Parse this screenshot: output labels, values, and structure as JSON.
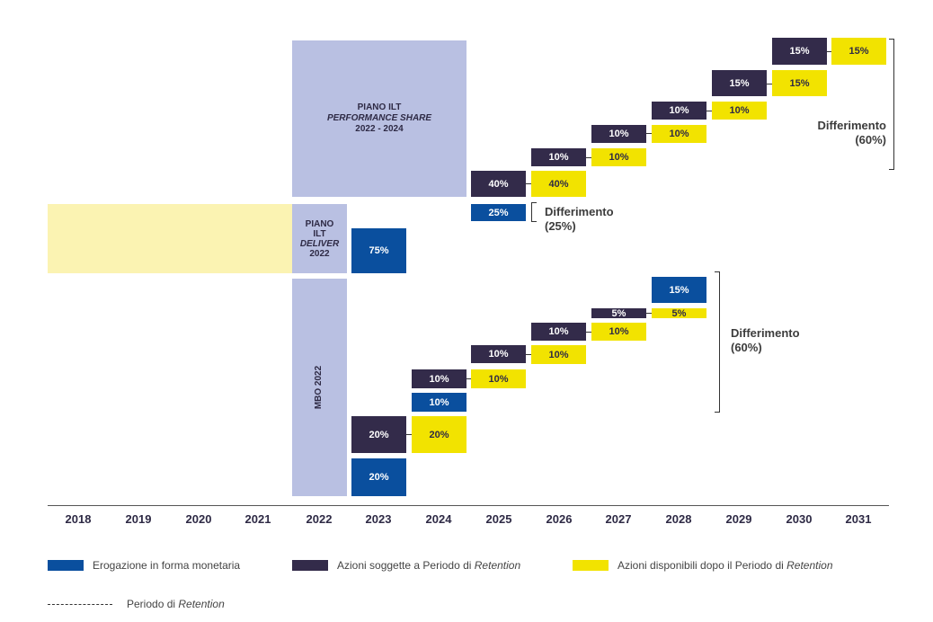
{
  "colors": {
    "blue": "#0a4f9e",
    "dark": "#332b4a",
    "yellow": "#f2e300",
    "plan_purple": "#b9c0e2",
    "plan_yellow": "#fbf3b2"
  },
  "plans": {
    "performance": {
      "line1": "PIANO ILT",
      "line2": "PERFORMANCE SHARE",
      "line3": "2022 - 2024"
    },
    "deliver": {
      "line1": "PIANO",
      "line2": "ILT",
      "line3": "DELIVER",
      "line4": "2022"
    },
    "mbo": {
      "label": "MBO 2022"
    }
  },
  "chart_data": {
    "type": "table",
    "title": "",
    "years": [
      "2018",
      "2019",
      "2020",
      "2021",
      "2022",
      "2023",
      "2024",
      "2025",
      "2026",
      "2027",
      "2028",
      "2029",
      "2030",
      "2031"
    ],
    "cells": [
      {
        "year": "2025",
        "kind": "Azioni soggette a Periodo di Retention",
        "label": "40%"
      },
      {
        "year": "2026",
        "kind": "Azioni disponibili dopo il Periodo di Retention",
        "label": "40%"
      },
      {
        "year": "2026",
        "kind": "Azioni soggette a Periodo di Retention",
        "label": "10%"
      },
      {
        "year": "2027",
        "kind": "Azioni disponibili dopo il Periodo di Retention",
        "label": "10%"
      },
      {
        "year": "2027",
        "kind": "Azioni soggette a Periodo di Retention",
        "label": "10%"
      },
      {
        "year": "2028",
        "kind": "Azioni disponibili dopo il Periodo di Retention",
        "label": "10%"
      },
      {
        "year": "2028",
        "kind": "Azioni soggette a Periodo di Retention",
        "label": "10%"
      },
      {
        "year": "2029",
        "kind": "Azioni disponibili dopo il Periodo di Retention",
        "label": "10%"
      },
      {
        "year": "2029",
        "kind": "Azioni soggette a Periodo di Retention",
        "label": "15%"
      },
      {
        "year": "2030",
        "kind": "Azioni disponibili dopo il Periodo di Retention",
        "label": "15%"
      },
      {
        "year": "2030",
        "kind": "Azioni soggette a Periodo di Retention",
        "label": "15%"
      },
      {
        "year": "2031",
        "kind": "Azioni disponibili dopo il Periodo di Retention",
        "label": "15%"
      },
      {
        "year": "2025",
        "kind": "Erogazione in forma monetaria",
        "label": "25%"
      },
      {
        "year": "2023",
        "kind": "Erogazione in forma monetaria",
        "label": "75%"
      },
      {
        "year": "2028",
        "kind": "Erogazione in forma monetaria",
        "label": "15%"
      },
      {
        "year": "2027",
        "kind": "Azioni soggette a Periodo di Retention",
        "label": "5%"
      },
      {
        "year": "2028",
        "kind": "Azioni disponibili dopo il Periodo di Retention",
        "label": "5%"
      },
      {
        "year": "2026",
        "kind": "Azioni soggette a Periodo di Retention",
        "label": "10%"
      },
      {
        "year": "2027",
        "kind": "Azioni disponibili dopo il Periodo di Retention",
        "label": "10%"
      },
      {
        "year": "2025",
        "kind": "Azioni soggette a Periodo di Retention",
        "label": "10%"
      },
      {
        "year": "2026",
        "kind": "Azioni disponibili dopo il Periodo di Retention",
        "label": "10%"
      },
      {
        "year": "2024",
        "kind": "Azioni soggette a Periodo di Retention",
        "label": "10%"
      },
      {
        "year": "2025",
        "kind": "Azioni disponibili dopo il Periodo di Retention",
        "label": "10%"
      },
      {
        "year": "2024",
        "kind": "Erogazione in forma monetaria",
        "label": "10%"
      },
      {
        "year": "2023",
        "kind": "Azioni soggette a Periodo di Retention",
        "label": "20%"
      },
      {
        "year": "2024",
        "kind": "Azioni disponibili dopo il Periodo di Retention",
        "label": "20%"
      },
      {
        "year": "2023",
        "kind": "Erogazione in forma monetaria",
        "label": "20%"
      }
    ],
    "deferrals": [
      {
        "line1": "Differimento",
        "line2": "(60%)"
      },
      {
        "line1": "Differimento",
        "line2": "(25%)"
      },
      {
        "line1": "Differimento",
        "line2": "(60%)"
      }
    ],
    "legend": [
      {
        "label": "Erogazione in forma monetaria"
      },
      {
        "label_pre": "Azioni soggette a Periodo di ",
        "label_it": "Retention"
      },
      {
        "label_pre": "Azioni disponibili dopo il Periodo di ",
        "label_it": "Retention"
      },
      {
        "label_pre": "Periodo di ",
        "label_it": "Retention"
      }
    ]
  }
}
